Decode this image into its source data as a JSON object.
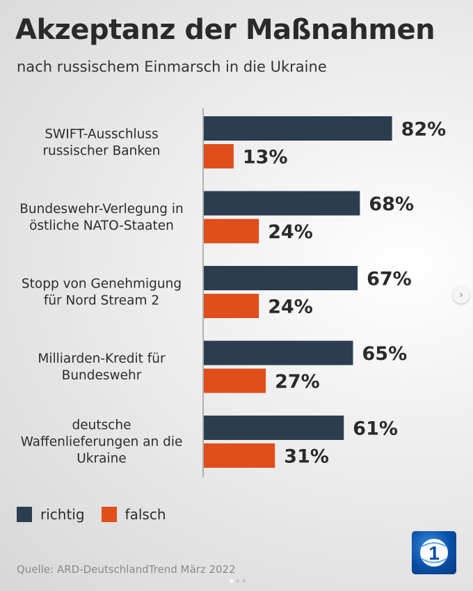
{
  "header": {
    "title": "Akzeptanz der Maßnahmen",
    "subtitle": "nach russischem Einmarsch in die Ukraine"
  },
  "chart_data": {
    "type": "bar",
    "orientation": "horizontal",
    "categories": [
      [
        "SWIFT-Ausschluss",
        "russischer Banken"
      ],
      [
        "Bundeswehr-Verlegung in",
        "östliche NATO-Staaten"
      ],
      [
        "Stopp von Genehmigung",
        "für Nord Stream 2"
      ],
      [
        "Milliarden-Kredit für",
        "Bundeswehr"
      ],
      [
        "deutsche",
        "Waffenlieferungen an die",
        "Ukraine"
      ]
    ],
    "series": [
      {
        "name": "richtig",
        "values": [
          82,
          68,
          67,
          65,
          61
        ],
        "labels": [
          "82%",
          "68%",
          "67%",
          "65%",
          "61%"
        ],
        "color": "#2b3e50"
      },
      {
        "name": "falsch",
        "values": [
          13,
          24,
          24,
          27,
          31
        ],
        "labels": [
          "13%",
          "24%",
          "24%",
          "27%",
          "31%"
        ],
        "color": "#e04e1b"
      }
    ],
    "unit": "%",
    "xlim": [
      0,
      100
    ],
    "grid": false,
    "legend": "bottom-left"
  },
  "legend": {
    "items": [
      {
        "label": "richtig",
        "color": "#2b3e50"
      },
      {
        "label": "falsch",
        "color": "#e04e1b"
      }
    ]
  },
  "footer": {
    "source": "Quelle: ARD-DeutschlandTrend März 2022"
  },
  "logo": {
    "icon": "ard-logo-icon",
    "text": "1"
  },
  "navigation": {
    "next_icon": "chevron-right-icon",
    "next_symbol": "›"
  }
}
